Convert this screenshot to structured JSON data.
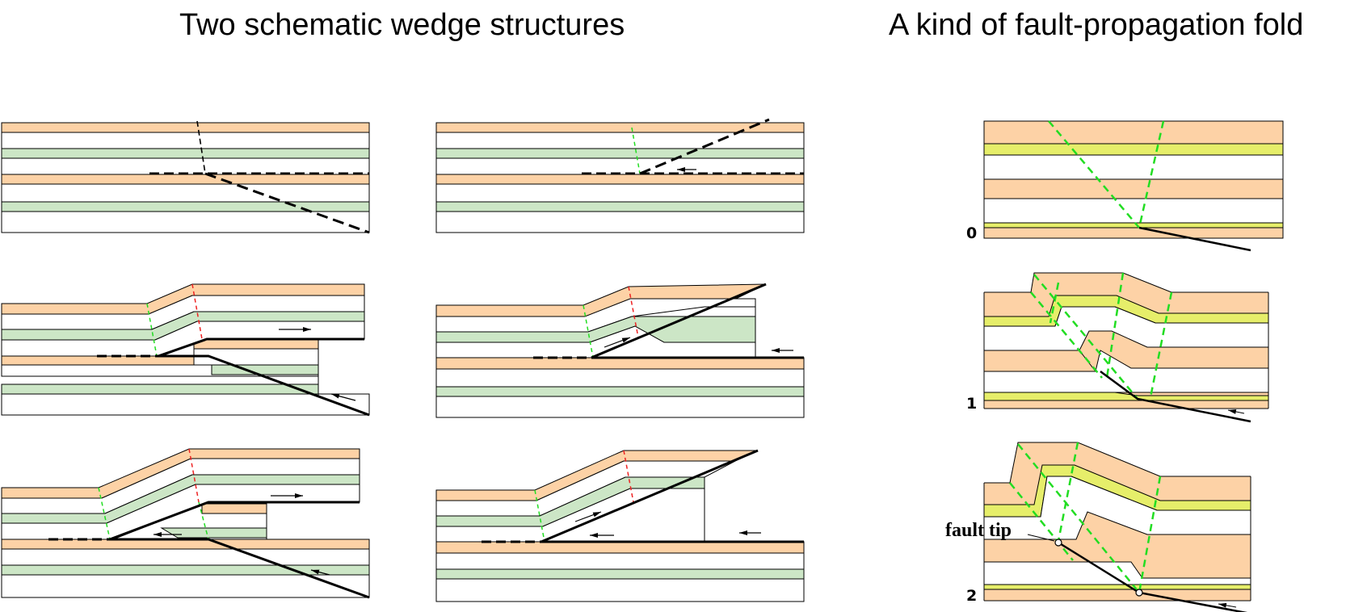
{
  "titles": {
    "left": "Two schematic wedge structures",
    "right": "A kind of fault-propagation fold"
  },
  "stages": [
    "0",
    "1",
    "2"
  ],
  "annotation": "fault tip",
  "colors": {
    "orange": "#fdd2a6",
    "green": "#cce6c6",
    "yellow": "#e6ee6a",
    "fault": "#000000",
    "axial_green": "#22dd22",
    "axial_red": "#ee2222"
  }
}
